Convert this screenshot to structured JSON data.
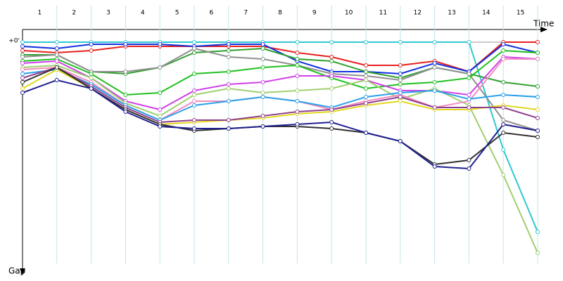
{
  "chart_data": {
    "type": "line",
    "lap_labels": [
      "1",
      "2",
      "3",
      "4",
      "5",
      "6",
      "7",
      "8",
      "9",
      "10",
      "11",
      "12",
      "13",
      "14",
      "15"
    ],
    "x_label": "Time",
    "y_label": "Gap",
    "x": [
      0,
      1,
      2,
      3,
      4,
      5,
      6,
      7,
      8,
      9,
      10,
      11,
      12,
      13,
      14,
      15
    ],
    "xlim": [
      0,
      15
    ],
    "ylim": [
      0,
      105
    ],
    "yticks": [
      {
        "value": 0,
        "label": "+0'"
      }
    ],
    "grid": true,
    "series": [
      {
        "color": "#30c8d0",
        "values": [
          0,
          0,
          0,
          0,
          0,
          0,
          0,
          0,
          0,
          0,
          0,
          0,
          0,
          0,
          51,
          90
        ]
      },
      {
        "color": "#e82020",
        "values": [
          4,
          5,
          4,
          2,
          2,
          2,
          2,
          2,
          5,
          7,
          11,
          11,
          9,
          14,
          0,
          0
        ]
      },
      {
        "color": "#1030e0",
        "values": [
          2,
          3,
          1,
          1,
          1,
          2,
          1,
          1,
          9,
          14,
          14,
          15,
          10,
          14,
          1,
          5
        ]
      },
      {
        "color": "#30a030",
        "values": [
          6,
          6,
          14,
          15,
          12,
          5,
          4,
          3,
          8,
          9,
          14,
          17,
          12,
          15,
          19,
          21
        ]
      },
      {
        "color": "#909090",
        "values": [
          7,
          6,
          14,
          14,
          12,
          3,
          7,
          8,
          11,
          15,
          16,
          18,
          12,
          15,
          37,
          42
        ]
      },
      {
        "color": "#20c020",
        "values": [
          9,
          8,
          15,
          25,
          24,
          15,
          14,
          12,
          11,
          17,
          22,
          20,
          19,
          17,
          4,
          5
        ]
      },
      {
        "color": "#d040e8",
        "values": [
          10,
          9,
          17,
          28,
          32,
          23,
          20,
          19,
          16,
          16,
          18,
          23,
          23,
          25,
          7,
          8
        ]
      },
      {
        "color": "#a0d070",
        "values": [
          12,
          11,
          17,
          29,
          35,
          25,
          22,
          24,
          23,
          22,
          18,
          27,
          22,
          30,
          63,
          100
        ]
      },
      {
        "color": "#f08cc0",
        "values": [
          13,
          12,
          19,
          30,
          37,
          28,
          28,
          26,
          28,
          32,
          28,
          25,
          31,
          28,
          8,
          8
        ]
      },
      {
        "color": "#2aa0e8",
        "values": [
          15,
          13,
          20,
          30,
          37,
          30,
          28,
          26,
          28,
          31,
          26,
          24,
          23,
          27,
          25,
          26
        ]
      },
      {
        "color": "#e0d820",
        "values": [
          22,
          13,
          22,
          32,
          39,
          38,
          37,
          36,
          34,
          33,
          30,
          28,
          32,
          32,
          30,
          32
        ]
      },
      {
        "color": "#904090",
        "values": [
          17,
          12,
          21,
          31,
          38,
          37,
          37,
          35,
          33,
          32,
          29,
          26,
          31,
          31,
          31,
          36
        ]
      },
      {
        "color": "#303030",
        "values": [
          19,
          12,
          22,
          32,
          39,
          42,
          41,
          40,
          40,
          41,
          43,
          47,
          58,
          56,
          43,
          45
        ]
      },
      {
        "color": "#202090",
        "values": [
          24,
          18,
          22,
          33,
          40,
          41,
          41,
          40,
          39,
          38,
          43,
          47,
          59,
          60,
          39,
          42
        ]
      }
    ]
  }
}
